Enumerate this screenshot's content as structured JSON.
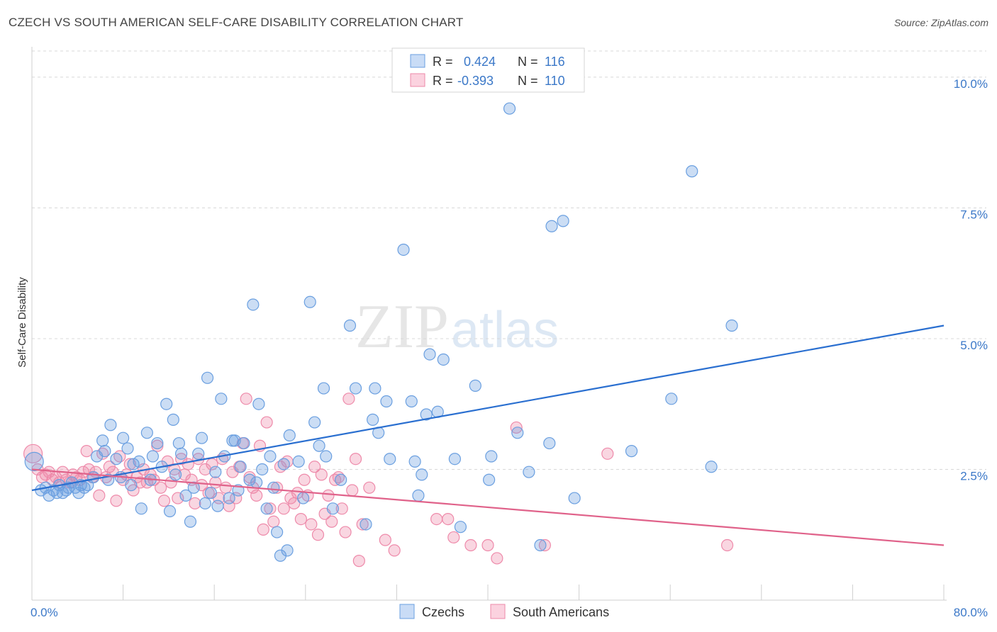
{
  "header": {
    "title": "CZECH VS SOUTH AMERICAN SELF-CARE DISABILITY CORRELATION CHART",
    "source": "Source: ZipAtlas.com"
  },
  "watermark": {
    "part1": "ZIP",
    "part2": "atlas"
  },
  "colors": {
    "czechs": "#6a9fe0",
    "czechs_line": "#2a6fd0",
    "south_americans": "#ee8aaa",
    "south_americans_line": "#e0628a",
    "tick_label": "#3b78c8",
    "grid": "#d8d8d8"
  },
  "legend": {
    "r_label": "R =",
    "n_label": "N =",
    "czechs": {
      "r": "0.424",
      "n": "116"
    },
    "south_americans": {
      "r": "-0.393",
      "n": "110"
    }
  },
  "chart_data": {
    "type": "scatter",
    "ylabel": "Self-Care Disability",
    "xlim": [
      0,
      80
    ],
    "ylim": [
      0,
      10.5
    ],
    "x_tick_labels": [
      "0.0%",
      "80.0%"
    ],
    "y_ticks": [
      2.5,
      5.0,
      7.5,
      10.0
    ],
    "y_tick_labels": [
      "2.5%",
      "5.0%",
      "7.5%",
      "10.0%"
    ],
    "grid": "horizontal dashed",
    "legend_position": "top-center",
    "series": [
      {
        "name": "Czechs",
        "trend": [
          [
            0,
            2.1
          ],
          [
            80,
            5.25
          ]
        ],
        "points": [
          [
            0.2,
            2.65
          ],
          [
            0.8,
            2.1
          ],
          [
            1.2,
            2.15
          ],
          [
            1.5,
            2.0
          ],
          [
            1.9,
            2.1
          ],
          [
            2.2,
            2.05
          ],
          [
            2.4,
            2.2
          ],
          [
            2.7,
            2.05
          ],
          [
            3.0,
            2.1
          ],
          [
            3.2,
            2.15
          ],
          [
            3.5,
            2.25
          ],
          [
            3.8,
            2.15
          ],
          [
            4.1,
            2.05
          ],
          [
            4.3,
            2.2
          ],
          [
            4.6,
            2.15
          ],
          [
            4.9,
            2.2
          ],
          [
            5.4,
            2.35
          ],
          [
            5.7,
            2.75
          ],
          [
            6.2,
            3.05
          ],
          [
            6.4,
            2.85
          ],
          [
            6.9,
            3.35
          ],
          [
            6.7,
            2.3
          ],
          [
            7.4,
            2.7
          ],
          [
            7.8,
            2.35
          ],
          [
            8.0,
            3.1
          ],
          [
            8.4,
            2.9
          ],
          [
            8.7,
            2.2
          ],
          [
            8.9,
            2.6
          ],
          [
            9.4,
            2.65
          ],
          [
            9.6,
            1.75
          ],
          [
            10.1,
            3.2
          ],
          [
            10.4,
            2.3
          ],
          [
            10.6,
            2.75
          ],
          [
            11.0,
            3.0
          ],
          [
            11.4,
            2.55
          ],
          [
            11.8,
            3.75
          ],
          [
            12.1,
            1.7
          ],
          [
            12.6,
            2.4
          ],
          [
            12.4,
            3.45
          ],
          [
            12.9,
            3.0
          ],
          [
            13.1,
            2.8
          ],
          [
            13.5,
            2.0
          ],
          [
            13.9,
            1.5
          ],
          [
            14.2,
            2.15
          ],
          [
            14.6,
            2.8
          ],
          [
            14.9,
            3.1
          ],
          [
            15.2,
            1.85
          ],
          [
            15.4,
            4.25
          ],
          [
            15.7,
            2.05
          ],
          [
            16.1,
            2.45
          ],
          [
            16.3,
            1.8
          ],
          [
            16.6,
            3.85
          ],
          [
            16.9,
            2.75
          ],
          [
            17.3,
            1.95
          ],
          [
            17.6,
            3.05
          ],
          [
            17.8,
            3.05
          ],
          [
            18.1,
            2.1
          ],
          [
            18.3,
            2.55
          ],
          [
            18.6,
            3.0
          ],
          [
            19.1,
            2.3
          ],
          [
            19.4,
            5.65
          ],
          [
            19.7,
            2.25
          ],
          [
            19.9,
            3.75
          ],
          [
            20.2,
            2.5
          ],
          [
            20.6,
            1.75
          ],
          [
            20.9,
            2.75
          ],
          [
            21.2,
            2.15
          ],
          [
            21.5,
            1.3
          ],
          [
            21.8,
            0.85
          ],
          [
            22.1,
            2.6
          ],
          [
            22.4,
            0.95
          ],
          [
            22.6,
            3.15
          ],
          [
            23.4,
            2.65
          ],
          [
            23.8,
            1.95
          ],
          [
            24.4,
            5.7
          ],
          [
            24.8,
            3.4
          ],
          [
            25.2,
            2.95
          ],
          [
            25.6,
            4.05
          ],
          [
            25.8,
            2.75
          ],
          [
            26.4,
            1.75
          ],
          [
            27.1,
            2.3
          ],
          [
            27.9,
            5.25
          ],
          [
            28.4,
            4.05
          ],
          [
            29.3,
            1.45
          ],
          [
            29.9,
            3.45
          ],
          [
            30.1,
            4.05
          ],
          [
            30.4,
            3.2
          ],
          [
            31.1,
            3.8
          ],
          [
            31.4,
            2.7
          ],
          [
            32.6,
            6.7
          ],
          [
            33.3,
            3.8
          ],
          [
            33.6,
            2.65
          ],
          [
            33.9,
            2.0
          ],
          [
            34.2,
            2.4
          ],
          [
            34.6,
            3.55
          ],
          [
            34.9,
            4.7
          ],
          [
            35.6,
            3.6
          ],
          [
            36.1,
            4.6
          ],
          [
            37.1,
            2.7
          ],
          [
            37.6,
            1.4
          ],
          [
            38.9,
            4.1
          ],
          [
            40.1,
            2.3
          ],
          [
            40.3,
            2.75
          ],
          [
            41.9,
            9.4
          ],
          [
            42.6,
            3.2
          ],
          [
            43.6,
            2.45
          ],
          [
            44.6,
            1.05
          ],
          [
            45.4,
            3.0
          ],
          [
            45.6,
            7.15
          ],
          [
            46.6,
            7.25
          ],
          [
            47.6,
            1.95
          ],
          [
            52.6,
            2.85
          ],
          [
            56.1,
            3.85
          ],
          [
            57.9,
            8.2
          ],
          [
            59.6,
            2.55
          ],
          [
            61.4,
            5.25
          ]
        ]
      },
      {
        "name": "South Americans",
        "trend": [
          [
            0,
            2.5
          ],
          [
            80,
            1.05
          ]
        ],
        "points": [
          [
            0.1,
            2.8
          ],
          [
            0.5,
            2.5
          ],
          [
            0.9,
            2.35
          ],
          [
            1.2,
            2.4
          ],
          [
            1.5,
            2.45
          ],
          [
            1.8,
            2.3
          ],
          [
            2.1,
            2.35
          ],
          [
            2.4,
            2.25
          ],
          [
            2.7,
            2.45
          ],
          [
            3.0,
            2.3
          ],
          [
            3.3,
            2.25
          ],
          [
            3.6,
            2.4
          ],
          [
            3.9,
            2.35
          ],
          [
            4.2,
            2.3
          ],
          [
            4.5,
            2.45
          ],
          [
            4.8,
            2.85
          ],
          [
            5.0,
            2.5
          ],
          [
            5.3,
            2.35
          ],
          [
            5.6,
            2.45
          ],
          [
            5.9,
            2.0
          ],
          [
            6.2,
            2.8
          ],
          [
            6.5,
            2.35
          ],
          [
            6.8,
            2.55
          ],
          [
            7.1,
            2.45
          ],
          [
            7.4,
            1.9
          ],
          [
            7.7,
            2.75
          ],
          [
            8.0,
            2.3
          ],
          [
            8.3,
            2.4
          ],
          [
            8.6,
            2.6
          ],
          [
            8.9,
            2.1
          ],
          [
            9.2,
            2.35
          ],
          [
            9.5,
            2.25
          ],
          [
            9.8,
            2.5
          ],
          [
            10.1,
            2.25
          ],
          [
            10.4,
            2.4
          ],
          [
            10.7,
            2.3
          ],
          [
            11.0,
            2.95
          ],
          [
            11.3,
            2.15
          ],
          [
            11.6,
            1.9
          ],
          [
            11.9,
            2.65
          ],
          [
            12.2,
            2.25
          ],
          [
            12.5,
            2.5
          ],
          [
            12.8,
            1.95
          ],
          [
            13.1,
            2.7
          ],
          [
            13.4,
            2.4
          ],
          [
            13.7,
            2.6
          ],
          [
            14.0,
            2.3
          ],
          [
            14.3,
            1.85
          ],
          [
            14.6,
            2.7
          ],
          [
            14.9,
            2.2
          ],
          [
            15.2,
            2.5
          ],
          [
            15.5,
            2.05
          ],
          [
            15.8,
            2.6
          ],
          [
            16.1,
            2.25
          ],
          [
            16.4,
            1.95
          ],
          [
            16.7,
            2.7
          ],
          [
            17.0,
            2.15
          ],
          [
            17.3,
            1.8
          ],
          [
            17.6,
            2.45
          ],
          [
            17.9,
            1.95
          ],
          [
            18.2,
            2.55
          ],
          [
            18.5,
            3.0
          ],
          [
            18.8,
            3.85
          ],
          [
            19.1,
            2.35
          ],
          [
            19.4,
            2.15
          ],
          [
            19.7,
            2.0
          ],
          [
            20.0,
            2.95
          ],
          [
            20.3,
            1.35
          ],
          [
            20.6,
            3.4
          ],
          [
            20.9,
            1.75
          ],
          [
            21.2,
            1.5
          ],
          [
            21.5,
            2.15
          ],
          [
            21.8,
            2.55
          ],
          [
            22.1,
            1.75
          ],
          [
            22.4,
            2.65
          ],
          [
            22.7,
            1.95
          ],
          [
            23.0,
            1.85
          ],
          [
            23.3,
            2.05
          ],
          [
            23.6,
            1.55
          ],
          [
            23.9,
            2.3
          ],
          [
            24.2,
            2.0
          ],
          [
            24.5,
            1.45
          ],
          [
            24.8,
            2.55
          ],
          [
            25.1,
            1.25
          ],
          [
            25.4,
            2.4
          ],
          [
            25.7,
            1.65
          ],
          [
            26.0,
            2.0
          ],
          [
            26.3,
            1.5
          ],
          [
            26.6,
            2.3
          ],
          [
            26.9,
            2.35
          ],
          [
            27.2,
            1.75
          ],
          [
            27.5,
            1.3
          ],
          [
            27.8,
            3.85
          ],
          [
            28.1,
            2.1
          ],
          [
            28.4,
            2.7
          ],
          [
            28.7,
            0.75
          ],
          [
            29.0,
            1.45
          ],
          [
            29.6,
            2.15
          ],
          [
            31.0,
            1.15
          ],
          [
            31.8,
            0.95
          ],
          [
            35.5,
            1.55
          ],
          [
            36.5,
            1.55
          ],
          [
            37.0,
            1.2
          ],
          [
            38.5,
            1.05
          ],
          [
            40.0,
            1.05
          ],
          [
            40.8,
            0.8
          ],
          [
            42.5,
            3.3
          ],
          [
            45.0,
            1.05
          ],
          [
            50.5,
            2.8
          ],
          [
            61.0,
            1.05
          ]
        ]
      }
    ]
  },
  "x_axis_tick_count": 11
}
